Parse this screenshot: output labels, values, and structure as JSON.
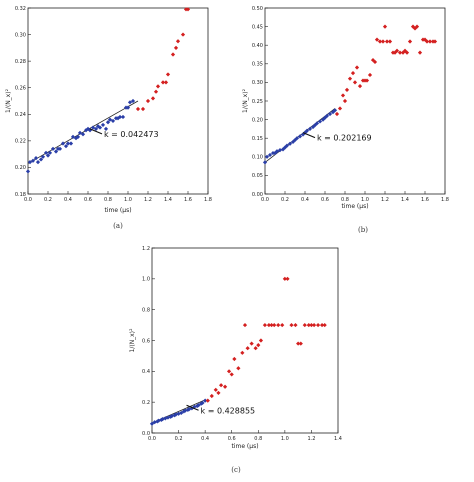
{
  "chart_data": [
    {
      "type": "scatter",
      "caption": "(a)",
      "xlabel": "time (µs)",
      "ylabel": "1/⟨N_x⟩²",
      "xlim": [
        0.0,
        1.8
      ],
      "ylim": [
        0.18,
        0.32
      ],
      "x_ticks": [
        "0.0",
        "0.2",
        "0.4",
        "0.6",
        "0.8",
        "1.0",
        "1.2",
        "1.4",
        "1.6",
        "1.8"
      ],
      "y_ticks": [
        "0.18",
        "0.20",
        "0.22",
        "0.24",
        "0.26",
        "0.28",
        "0.30",
        "0.32"
      ],
      "annotation": "k = 0.042473",
      "annotation_target": [
        0.62,
        0.229
      ],
      "fit_line": {
        "x": [
          0.0,
          1.1
        ],
        "y": [
          0.203,
          0.25
        ]
      },
      "series": [
        {
          "color": "#2b3fa8",
          "x": [
            0.0,
            0.02,
            0.05,
            0.08,
            0.1,
            0.13,
            0.15,
            0.18,
            0.2,
            0.22,
            0.25,
            0.28,
            0.3,
            0.32,
            0.35,
            0.38,
            0.4,
            0.43,
            0.45,
            0.48,
            0.5,
            0.52,
            0.55,
            0.58,
            0.6,
            0.62,
            0.65,
            0.68,
            0.7,
            0.72,
            0.75,
            0.78,
            0.8,
            0.82,
            0.85,
            0.88,
            0.9,
            0.92,
            0.95,
            0.98,
            1.0,
            1.02,
            1.05
          ],
          "y": [
            0.197,
            0.204,
            0.205,
            0.207,
            0.204,
            0.206,
            0.208,
            0.211,
            0.209,
            0.211,
            0.214,
            0.212,
            0.214,
            0.214,
            0.218,
            0.216,
            0.218,
            0.218,
            0.223,
            0.222,
            0.223,
            0.226,
            0.225,
            0.228,
            0.229,
            0.228,
            0.23,
            0.229,
            0.231,
            0.23,
            0.232,
            0.229,
            0.234,
            0.236,
            0.235,
            0.237,
            0.237,
            0.238,
            0.238,
            0.245,
            0.245,
            0.249,
            0.25
          ]
        },
        {
          "color": "#d42020",
          "x": [
            1.1,
            1.15,
            1.2,
            1.25,
            1.28,
            1.3,
            1.35,
            1.38,
            1.4,
            1.45,
            1.48,
            1.5,
            1.55,
            1.58,
            1.6
          ],
          "y": [
            0.244,
            0.244,
            0.25,
            0.252,
            0.257,
            0.261,
            0.264,
            0.264,
            0.27,
            0.285,
            0.29,
            0.295,
            0.3,
            0.319,
            0.319
          ]
        }
      ]
    },
    {
      "type": "scatter",
      "caption": "(b)",
      "xlabel": "time (µs)",
      "ylabel": "1/⟨N_x⟩²",
      "xlim": [
        0.0,
        1.8
      ],
      "ylim": [
        0.0,
        0.5
      ],
      "x_ticks": [
        "0.0",
        "0.2",
        "0.4",
        "0.6",
        "0.8",
        "1.0",
        "1.2",
        "1.4",
        "1.6",
        "1.8"
      ],
      "y_ticks": [
        "0.00",
        "0.05",
        "0.10",
        "0.15",
        "0.20",
        "0.25",
        "0.30",
        "0.35",
        "0.40",
        "0.45",
        "0.50"
      ],
      "annotation": "k = 0.202169",
      "annotation_target": [
        0.38,
        0.165
      ],
      "fit_line": {
        "x": [
          0.0,
          0.7
        ],
        "y": [
          0.085,
          0.23
        ]
      },
      "series": [
        {
          "color": "#2b3fa8",
          "x": [
            0.0,
            0.02,
            0.05,
            0.08,
            0.1,
            0.12,
            0.15,
            0.18,
            0.2,
            0.22,
            0.25,
            0.28,
            0.3,
            0.32,
            0.35,
            0.38,
            0.4,
            0.42,
            0.45,
            0.48,
            0.5,
            0.52,
            0.55,
            0.58,
            0.6,
            0.62,
            0.65,
            0.68,
            0.7
          ],
          "y": [
            0.085,
            0.1,
            0.105,
            0.11,
            0.11,
            0.115,
            0.118,
            0.12,
            0.125,
            0.13,
            0.135,
            0.14,
            0.145,
            0.15,
            0.155,
            0.16,
            0.165,
            0.17,
            0.175,
            0.18,
            0.185,
            0.19,
            0.195,
            0.2,
            0.205,
            0.21,
            0.215,
            0.22,
            0.225
          ]
        },
        {
          "color": "#d42020",
          "x": [
            0.72,
            0.75,
            0.78,
            0.8,
            0.82,
            0.85,
            0.88,
            0.9,
            0.92,
            0.95,
            0.98,
            1.0,
            1.02,
            1.05,
            1.08,
            1.1,
            1.12,
            1.15,
            1.18,
            1.2,
            1.22,
            1.25,
            1.28,
            1.3,
            1.32,
            1.35,
            1.38,
            1.4,
            1.42,
            1.45,
            1.48,
            1.5,
            1.52,
            1.55,
            1.58,
            1.6,
            1.62,
            1.65,
            1.68,
            1.7
          ],
          "y": [
            0.215,
            0.23,
            0.265,
            0.25,
            0.28,
            0.31,
            0.325,
            0.3,
            0.34,
            0.29,
            0.305,
            0.305,
            0.305,
            0.32,
            0.36,
            0.355,
            0.415,
            0.41,
            0.41,
            0.45,
            0.41,
            0.41,
            0.38,
            0.38,
            0.385,
            0.38,
            0.38,
            0.385,
            0.38,
            0.41,
            0.45,
            0.445,
            0.45,
            0.38,
            0.415,
            0.415,
            0.41,
            0.41,
            0.41,
            0.41
          ]
        }
      ]
    },
    {
      "type": "scatter",
      "caption": "(c)",
      "xlabel": "time (µs)",
      "ylabel": "1/⟨N_x⟩²",
      "xlim": [
        0.0,
        1.4
      ],
      "ylim": [
        0.0,
        1.2
      ],
      "x_ticks": [
        "0.0",
        "0.2",
        "0.4",
        "0.6",
        "0.8",
        "1.0",
        "1.2",
        "1.4"
      ],
      "y_ticks": [
        "0.0",
        "0.2",
        "0.4",
        "0.6",
        "0.8",
        "1.0",
        "1.2"
      ],
      "annotation": "k = 0.428855",
      "annotation_target": [
        0.26,
        0.18
      ],
      "fit_line": {
        "x": [
          0.0,
          0.4
        ],
        "y": [
          0.065,
          0.215
        ]
      },
      "series": [
        {
          "color": "#2b3fa8",
          "x": [
            0.0,
            0.02,
            0.04,
            0.05,
            0.07,
            0.08,
            0.1,
            0.12,
            0.14,
            0.15,
            0.17,
            0.18,
            0.2,
            0.22,
            0.24,
            0.25,
            0.27,
            0.28,
            0.3,
            0.32,
            0.34,
            0.35,
            0.37,
            0.38,
            0.4
          ],
          "y": [
            0.06,
            0.07,
            0.075,
            0.08,
            0.085,
            0.09,
            0.095,
            0.1,
            0.105,
            0.11,
            0.115,
            0.12,
            0.125,
            0.13,
            0.14,
            0.145,
            0.15,
            0.155,
            0.16,
            0.17,
            0.175,
            0.18,
            0.19,
            0.195,
            0.21
          ]
        },
        {
          "color": "#d42020",
          "x": [
            0.42,
            0.45,
            0.48,
            0.5,
            0.52,
            0.55,
            0.58,
            0.6,
            0.62,
            0.65,
            0.68,
            0.7,
            0.72,
            0.75,
            0.78,
            0.8,
            0.82,
            0.85,
            0.88,
            0.9,
            0.92,
            0.95,
            0.98,
            1.0,
            1.02,
            1.05,
            1.08,
            1.1,
            1.12,
            1.15,
            1.18,
            1.2,
            1.22,
            1.25,
            1.28,
            1.3
          ],
          "y": [
            0.21,
            0.24,
            0.28,
            0.26,
            0.31,
            0.3,
            0.4,
            0.38,
            0.48,
            0.42,
            0.52,
            0.7,
            0.55,
            0.58,
            0.55,
            0.57,
            0.6,
            0.7,
            0.7,
            0.7,
            0.7,
            0.7,
            0.7,
            1.0,
            1.0,
            0.7,
            0.7,
            0.58,
            0.58,
            0.7,
            0.7,
            0.7,
            0.7,
            0.7,
            0.7,
            0.7
          ]
        }
      ]
    }
  ]
}
